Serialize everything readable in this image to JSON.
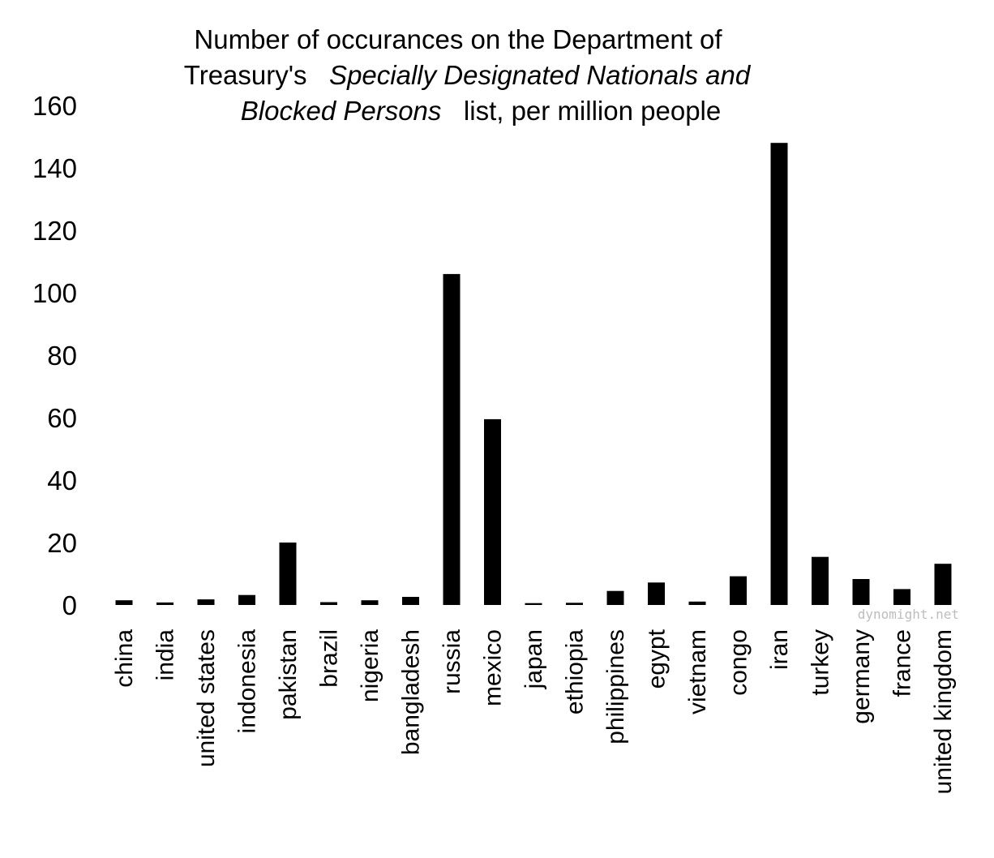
{
  "chart_data": {
    "type": "bar",
    "title_lines": [
      [
        {
          "text": "Number of occurances on the Department of",
          "italic": false
        }
      ],
      [
        {
          "text": "Treasury's",
          "italic": false
        },
        {
          "text": "Specially Designated Nationals and",
          "italic": true
        }
      ],
      [
        {
          "text": "Blocked Persons",
          "italic": true
        },
        {
          "text": "list, per million people",
          "italic": false
        }
      ]
    ],
    "categories": [
      "china",
      "india",
      "united states",
      "indonesia",
      "pakistan",
      "brazil",
      "nigeria",
      "bangladesh",
      "russia",
      "mexico",
      "japan",
      "ethiopia",
      "philippines",
      "egypt",
      "vietnam",
      "congo",
      "iran",
      "turkey",
      "germany",
      "france",
      "united kingdom"
    ],
    "values": [
      1.5,
      0.8,
      1.8,
      3.2,
      20,
      0.9,
      1.5,
      2.6,
      106,
      59.5,
      0.6,
      0.7,
      4.5,
      7.2,
      1.1,
      9.2,
      148,
      15.4,
      8.3,
      5.1,
      13.2
    ],
    "ylim": [
      0,
      160
    ],
    "yticks": [
      0,
      20,
      40,
      60,
      80,
      100,
      120,
      140,
      160
    ],
    "xlabel": "",
    "ylabel": "",
    "grid": false,
    "bar_color": "#000000",
    "watermark": "dynomight.net"
  }
}
